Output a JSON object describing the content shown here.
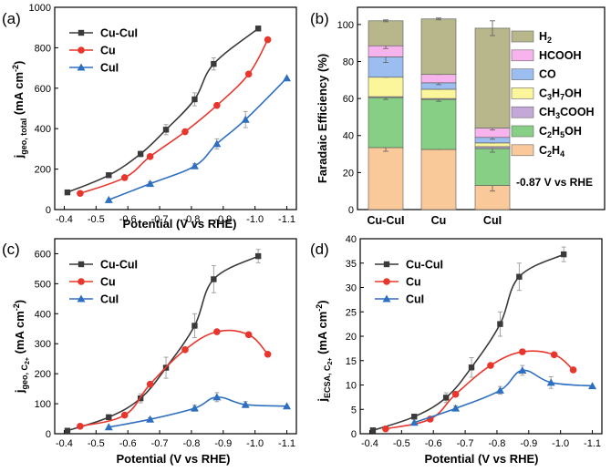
{
  "series_colors": {
    "Cu-CuI": "#3a3a3a",
    "Cu": "#e8362c",
    "CuI": "#2f6fc0"
  },
  "fe_colors": {
    "C2H4": "#f9c99a",
    "C2H5OH": "#86cf84",
    "CH3COOH": "#c3a8d8",
    "C3H7OH": "#fbf59c",
    "CO": "#9bbdf0",
    "HCOOH": "#f6b3ec",
    "H2": "#b7b78b"
  },
  "chart_data": [
    {
      "panel": "(a)",
      "type": "line",
      "xlabel": "Potential (V vs RHE)",
      "ylabel_main": "j",
      "ylabel_sub": "geo, total",
      "ylabel_unit": " (mA cm",
      "ylabel_exp": "-2",
      "ylabel_close": ")",
      "xlim": [
        -0.37,
        -1.13
      ],
      "ylim": [
        0,
        1000
      ],
      "xticks": [
        -0.4,
        -0.5,
        -0.6,
        -0.7,
        -0.8,
        -0.9,
        -1.0,
        -1.1
      ],
      "xtick_labels": [
        "-0.4",
        "-0.5",
        "-0.6",
        "-0.7",
        "-0.8",
        "-0.9",
        "-1.0",
        "-1.1"
      ],
      "yticks": [
        0,
        200,
        400,
        600,
        800,
        1000
      ],
      "ytick_labels": [
        "0",
        "200",
        "400",
        "600",
        "800",
        "1000"
      ],
      "legend": [
        "Cu-CuI",
        "Cu",
        "CuI"
      ],
      "series": [
        {
          "name": "Cu-CuI",
          "marker": "square",
          "x": [
            -0.41,
            -0.54,
            -0.64,
            -0.72,
            -0.81,
            -0.87,
            -1.01
          ],
          "y": [
            85,
            170,
            275,
            395,
            545,
            720,
            895
          ],
          "err": [
            8,
            10,
            14,
            25,
            32,
            30,
            12
          ]
        },
        {
          "name": "Cu",
          "marker": "circle",
          "x": [
            -0.45,
            -0.59,
            -0.67,
            -0.78,
            -0.88,
            -0.98,
            -1.04
          ],
          "y": [
            80,
            158,
            262,
            385,
            515,
            670,
            840
          ],
          "err": [
            0,
            0,
            0,
            0,
            0,
            0,
            0
          ]
        },
        {
          "name": "CuI",
          "marker": "triangle",
          "x": [
            -0.54,
            -0.67,
            -0.81,
            -0.88,
            -0.97,
            -1.1
          ],
          "y": [
            48,
            128,
            215,
            325,
            445,
            650
          ],
          "err": [
            0,
            10,
            12,
            25,
            40,
            0
          ]
        }
      ]
    },
    {
      "panel": "(b)",
      "type": "stacked-bar",
      "ylabel": "Faradaic Efficiency (%)",
      "annotation": "-0.87 V vs RHE",
      "ylim": [
        0,
        100
      ],
      "yticks": [
        0,
        20,
        40,
        60,
        80,
        100
      ],
      "ytick_labels": [
        "0",
        "20",
        "40",
        "60",
        "80",
        "100"
      ],
      "categories": [
        "Cu-CuI",
        "Cu",
        "CuI"
      ],
      "stack_order": [
        "C2H4",
        "C2H5OH",
        "CH3COOH",
        "C3H7OH",
        "CO",
        "HCOOH",
        "H2"
      ],
      "legend_order": [
        "H2",
        "HCOOH",
        "CO",
        "C3H7OH",
        "CH3COOH",
        "C2H5OH",
        "C2H4"
      ],
      "legend_labels": {
        "H2": [
          "H",
          "2",
          ""
        ],
        "HCOOH": [
          "HCOOH",
          "",
          ""
        ],
        "CO": [
          "CO",
          "",
          ""
        ],
        "C3H7OH": [
          "C",
          "3",
          "H",
          "7",
          "OH"
        ],
        "CH3COOH": [
          "CH",
          "3",
          "COOH"
        ],
        "C2H5OH": [
          "C",
          "2",
          "H",
          "5",
          "OH"
        ],
        "C2H4": [
          "C",
          "2",
          "H",
          "4"
        ]
      },
      "values": {
        "C2H4": [
          33.5,
          32.5,
          13
        ],
        "C2H5OH": [
          27,
          27,
          20
        ],
        "CH3COOH": [
          0.5,
          0.5,
          1
        ],
        "C3H7OH": [
          10.5,
          5,
          2
        ],
        "CO": [
          11,
          3.5,
          3
        ],
        "HCOOH": [
          6,
          4.5,
          5
        ],
        "H2": [
          13.5,
          30,
          54
        ]
      },
      "errors": {
        "C2H4": [
          2,
          0,
          3
        ],
        "C2H5OH": [
          1,
          1,
          2
        ],
        "CO": [
          3,
          1,
          1
        ],
        "HCOOH": [
          1.5,
          0,
          1
        ],
        "H2": [
          0.5,
          0.5,
          4
        ]
      }
    },
    {
      "panel": "(c)",
      "type": "line",
      "xlabel": "Potential (V vs RHE)",
      "ylabel_main": "j",
      "ylabel_sub": "geo, C",
      "ylabel_sub2": "2+",
      "ylabel_unit": " (mA cm",
      "ylabel_exp": "-2",
      "ylabel_close": ")",
      "xlim": [
        -0.37,
        -1.13
      ],
      "ylim": [
        0,
        650
      ],
      "xticks": [
        -0.4,
        -0.5,
        -0.6,
        -0.7,
        -0.8,
        -0.9,
        -1.0,
        -1.1
      ],
      "xtick_labels": [
        "-0.4",
        "-0.5",
        "-0.6",
        "-0.7",
        "-0.8",
        "-0.9",
        "-1.0",
        "-1.1"
      ],
      "yticks": [
        0,
        100,
        200,
        300,
        400,
        500,
        600
      ],
      "ytick_labels": [
        "0",
        "100",
        "200",
        "300",
        "400",
        "500",
        "600"
      ],
      "legend": [
        "Cu-CuI",
        "Cu",
        "CuI"
      ],
      "series": [
        {
          "name": "Cu-CuI",
          "marker": "square",
          "x": [
            -0.41,
            -0.54,
            -0.64,
            -0.72,
            -0.81,
            -0.87,
            -1.01
          ],
          "y": [
            10,
            55,
            118,
            220,
            360,
            515,
            592
          ],
          "err": [
            4,
            8,
            15,
            35,
            40,
            45,
            22
          ]
        },
        {
          "name": "Cu",
          "marker": "circle",
          "x": [
            -0.45,
            -0.59,
            -0.67,
            -0.78,
            -0.88,
            -0.98,
            -1.04
          ],
          "y": [
            25,
            62,
            165,
            280,
            340,
            330,
            265
          ],
          "err": [
            0,
            0,
            0,
            0,
            0,
            0,
            0
          ]
        },
        {
          "name": "CuI",
          "marker": "triangle",
          "x": [
            -0.54,
            -0.67,
            -0.81,
            -0.88,
            -0.97,
            -1.1
          ],
          "y": [
            22,
            48,
            85,
            122,
            97,
            92
          ],
          "err": [
            0,
            5,
            10,
            15,
            10,
            0
          ]
        }
      ]
    },
    {
      "panel": "(d)",
      "type": "line",
      "xlabel": "Potential (V vs RHE)",
      "ylabel_main": "j",
      "ylabel_sub": "ECSA, C",
      "ylabel_sub2": "2+",
      "ylabel_unit": " (mA cm",
      "ylabel_exp": "-2",
      "ylabel_close": ")",
      "xlim": [
        -0.37,
        -1.13
      ],
      "ylim": [
        0,
        40
      ],
      "xticks": [
        -0.4,
        -0.5,
        -0.6,
        -0.7,
        -0.8,
        -0.9,
        -1.0,
        -1.1
      ],
      "xtick_labels": [
        "-0.4",
        "-0.5",
        "-0.6",
        "-0.7",
        "-0.8",
        "-0.9",
        "-1.0",
        "-1.1"
      ],
      "yticks": [
        0,
        5,
        10,
        15,
        20,
        25,
        30,
        35,
        40
      ],
      "ytick_labels": [
        "0",
        "5",
        "10",
        "15",
        "20",
        "25",
        "30",
        "35",
        "40"
      ],
      "legend": [
        "Cu-CuI",
        "Cu",
        "CuI"
      ],
      "series": [
        {
          "name": "Cu-CuI",
          "marker": "square",
          "x": [
            -0.41,
            -0.54,
            -0.64,
            -0.72,
            -0.81,
            -0.87,
            -1.01
          ],
          "y": [
            0.7,
            3.5,
            7.4,
            13.6,
            22.5,
            32.2,
            36.8
          ],
          "err": [
            0.3,
            0.5,
            1,
            2,
            2.5,
            2.8,
            1.5
          ]
        },
        {
          "name": "Cu",
          "marker": "circle",
          "x": [
            -0.45,
            -0.59,
            -0.67,
            -0.78,
            -0.88,
            -0.98,
            -1.04
          ],
          "y": [
            1.0,
            3.0,
            8.1,
            14.0,
            16.8,
            16.2,
            13.1
          ],
          "err": [
            0,
            0,
            0,
            0,
            0,
            0,
            0
          ]
        },
        {
          "name": "CuI",
          "marker": "triangle",
          "x": [
            -0.54,
            -0.67,
            -0.81,
            -0.88,
            -0.97,
            -1.1
          ],
          "y": [
            2.3,
            5.2,
            8.9,
            13.0,
            10.5,
            9.8
          ],
          "err": [
            0,
            0.5,
            0.8,
            1.0,
            1.2,
            0
          ]
        }
      ]
    }
  ]
}
